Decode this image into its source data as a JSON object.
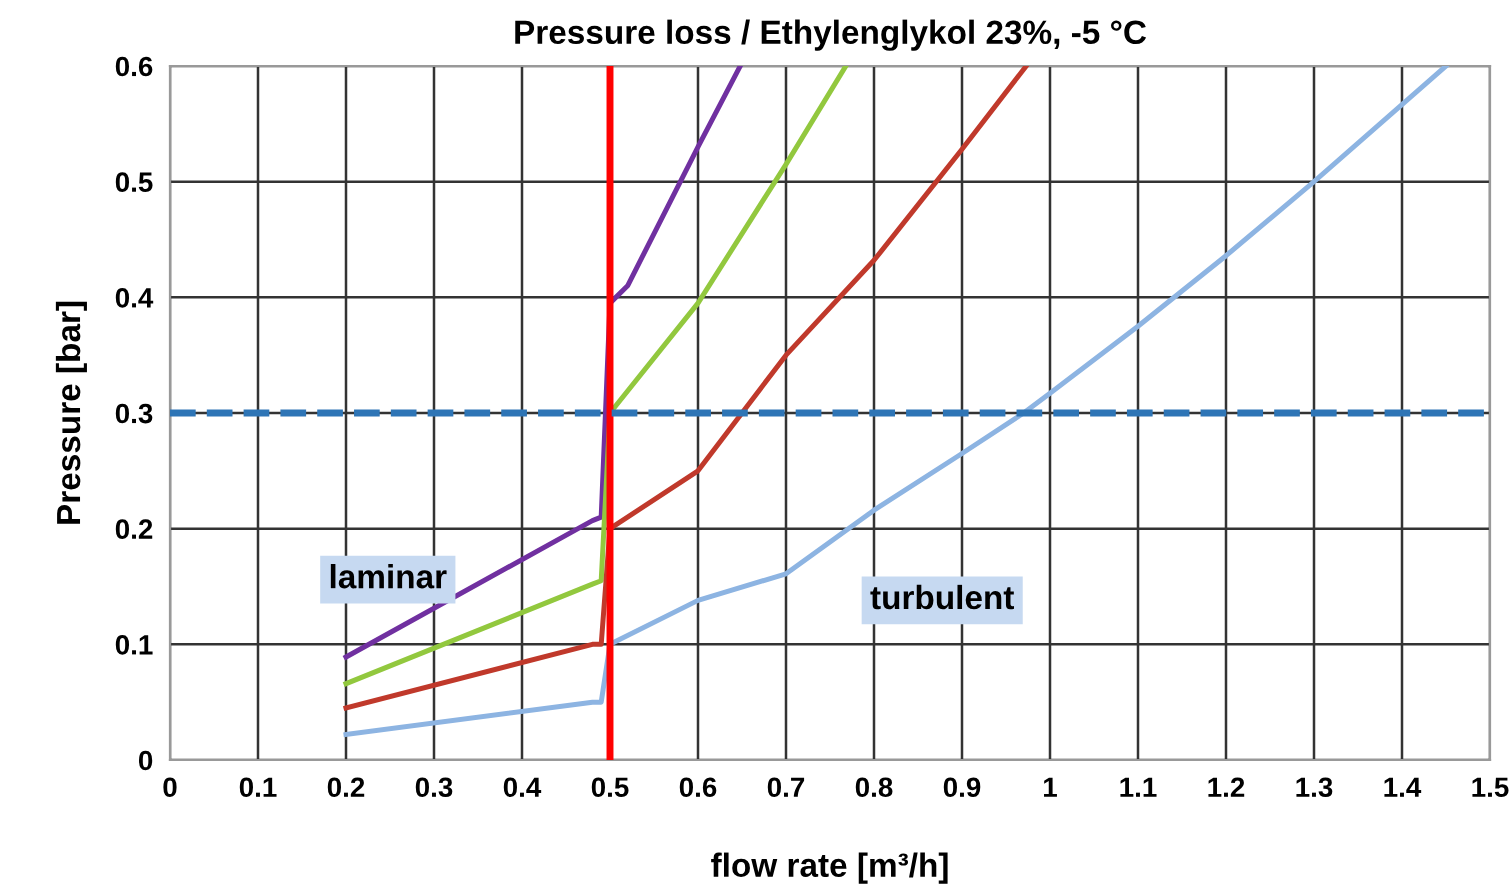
{
  "chart_data": {
    "type": "line",
    "title": "Pressure loss / Ethylenglykol 23%, -5 °C",
    "xlabel": "flow rate [m³/h]",
    "ylabel": "Pressure [bar]",
    "series": [
      {
        "color": "#7030a0",
        "x": [
          0.2,
          0.48,
          0.49,
          0.5,
          0.52,
          0.6,
          0.648
        ],
        "values": [
          0.089,
          0.207,
          0.21,
          0.395,
          0.41,
          0.53,
          0.6
        ]
      },
      {
        "color": "#92c83e",
        "x": [
          0.2,
          0.48,
          0.49,
          0.5,
          0.6,
          0.7,
          0.768
        ],
        "values": [
          0.066,
          0.152,
          0.155,
          0.3,
          0.395,
          0.515,
          0.6
        ]
      },
      {
        "color": "#c0392b",
        "x": [
          0.2,
          0.48,
          0.49,
          0.5,
          0.6,
          0.65,
          0.7,
          0.8,
          0.9,
          0.973
        ],
        "values": [
          0.045,
          0.1,
          0.1,
          0.2,
          0.25,
          0.3,
          0.35,
          0.432,
          0.528,
          0.6
        ]
      },
      {
        "color": "#8db4e2",
        "x": [
          0.2,
          0.48,
          0.49,
          0.5,
          0.6,
          0.7,
          0.8,
          0.9,
          0.97,
          1.0,
          1.1,
          1.2,
          1.3,
          1.45
        ],
        "values": [
          0.022,
          0.05,
          0.05,
          0.1,
          0.138,
          0.161,
          0.216,
          0.265,
          0.3,
          0.317,
          0.375,
          0.436,
          0.5,
          0.6
        ]
      }
    ],
    "ref_lines": [
      {
        "axis": "x",
        "value": 0.5,
        "color": "#ff0000",
        "line_style": "solid"
      },
      {
        "axis": "y",
        "value": 0.3,
        "color": "#2e75b6",
        "line_style": "dashed"
      }
    ],
    "annotations": [
      "laminar",
      "turbulent"
    ],
    "xlim": [
      0,
      1.5
    ],
    "xticks": [
      0,
      0.1,
      0.2,
      0.3,
      0.4,
      0.5,
      0.6,
      0.7,
      0.8,
      0.9,
      1,
      1.1,
      1.2,
      1.3,
      1.4,
      1.5
    ],
    "ylim": [
      0,
      0.6
    ],
    "yticks": [
      0,
      0.1,
      0.2,
      0.3,
      0.4,
      0.5,
      0.6
    ],
    "grid": true,
    "marker": "none",
    "line_style": "solid"
  }
}
